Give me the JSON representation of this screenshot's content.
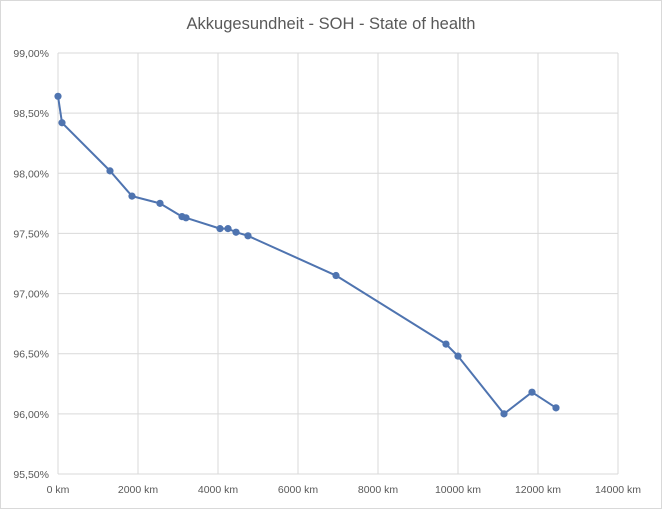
{
  "chart_data": {
    "type": "line",
    "title": "Akkugesundheit - SOH - State of health",
    "xlabel": "",
    "ylabel": "",
    "xlim": [
      0,
      14000
    ],
    "ylim": [
      95.5,
      99.0
    ],
    "x_ticks": [
      0,
      2000,
      4000,
      6000,
      8000,
      10000,
      12000,
      14000
    ],
    "x_tick_labels": [
      "0 km",
      "2000 km",
      "4000 km",
      "6000 km",
      "8000 km",
      "10000 km",
      "12000 km",
      "14000 km"
    ],
    "y_ticks": [
      95.5,
      96.0,
      96.5,
      97.0,
      97.5,
      98.0,
      98.5,
      99.0
    ],
    "y_tick_labels": [
      "95,50%",
      "96,00%",
      "96,50%",
      "97,00%",
      "97,50%",
      "98,00%",
      "98,50%",
      "99,00%"
    ],
    "grid": "both",
    "legend": "none",
    "series": [
      {
        "color": "#4f74b0",
        "points": [
          {
            "x": 0,
            "y": 98.64
          },
          {
            "x": 100,
            "y": 98.42
          },
          {
            "x": 1300,
            "y": 98.02
          },
          {
            "x": 1850,
            "y": 97.81
          },
          {
            "x": 2550,
            "y": 97.75
          },
          {
            "x": 3100,
            "y": 97.64
          },
          {
            "x": 3200,
            "y": 97.63
          },
          {
            "x": 4050,
            "y": 97.54
          },
          {
            "x": 4250,
            "y": 97.54
          },
          {
            "x": 4450,
            "y": 97.51
          },
          {
            "x": 4750,
            "y": 97.48
          },
          {
            "x": 6950,
            "y": 97.15
          },
          {
            "x": 9700,
            "y": 96.58
          },
          {
            "x": 10000,
            "y": 96.48
          },
          {
            "x": 11150,
            "y": 96.0
          },
          {
            "x": 11850,
            "y": 96.18
          },
          {
            "x": 12450,
            "y": 96.05
          }
        ]
      }
    ]
  },
  "colors": {
    "line": "#4f74b0",
    "grid": "#d9d9d9",
    "text": "#595959"
  }
}
